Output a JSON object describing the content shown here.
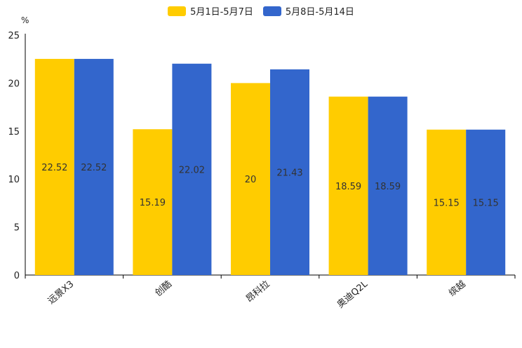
{
  "chart_data": {
    "type": "bar",
    "unit_label": "%",
    "categories": [
      "远景X3",
      "创酷",
      "昂科拉",
      "奥迪Q2L",
      "缤越"
    ],
    "series": [
      {
        "name": "5月1日-5月7日",
        "color": "#ffcc00",
        "values": [
          22.52,
          15.19,
          20,
          18.59,
          15.15
        ],
        "labels": [
          "22.52",
          "15.19",
          "20",
          "18.59",
          "15.15"
        ]
      },
      {
        "name": "5月8日-5月14日",
        "color": "#3366cc",
        "values": [
          22.52,
          22.02,
          21.43,
          18.59,
          15.15
        ],
        "labels": [
          "22.52",
          "22.02",
          "21.43",
          "18.59",
          "15.15"
        ]
      }
    ],
    "ylim": [
      0,
      25
    ],
    "yticks": [
      0,
      5,
      10,
      15,
      20,
      25
    ],
    "legend_position": "top-center"
  }
}
